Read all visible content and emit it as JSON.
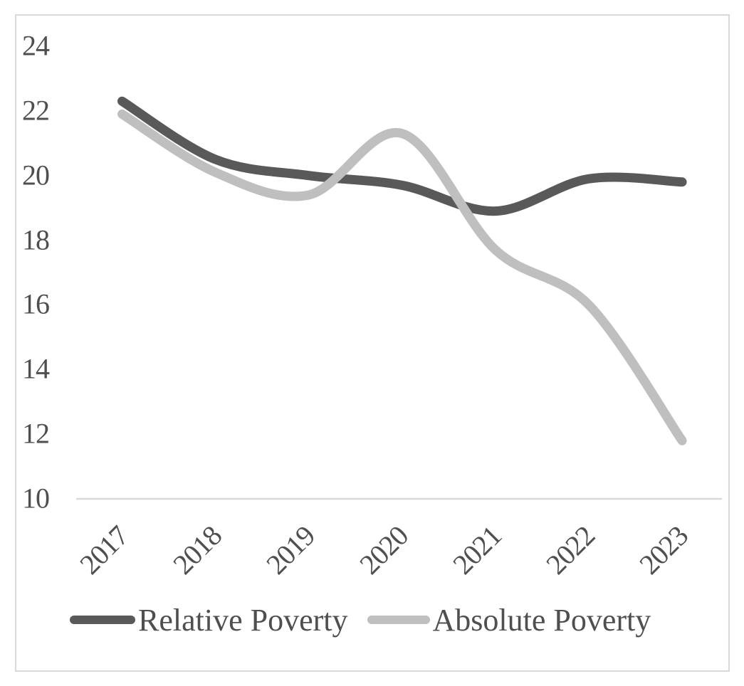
{
  "figure": {
    "background": "#ffffff",
    "border_color": "#d9d9d9"
  },
  "chart_data": {
    "type": "line",
    "title": "",
    "xlabel": "",
    "ylabel": "",
    "categories": [
      "2017",
      "2018",
      "2019",
      "2020",
      "2021",
      "2022",
      "2023"
    ],
    "series": [
      {
        "name": "Relative Poverty",
        "color": "#595959",
        "values": [
          22.3,
          20.5,
          20.0,
          19.7,
          18.9,
          19.9,
          19.8
        ]
      },
      {
        "name": "Absolute Poverty",
        "color": "#bfbfbf",
        "values": [
          21.9,
          20.1,
          19.4,
          21.3,
          17.7,
          16.0,
          11.8
        ]
      }
    ],
    "y_ticks": [
      24,
      22,
      20,
      18,
      16,
      14,
      12,
      10
    ],
    "ylim": [
      10,
      24.5
    ],
    "grid": false,
    "axis_line_color": "#d9d9d9",
    "tick_label_color": "#4f4f4f",
    "legend_position": "bottom",
    "line_style": "smooth"
  }
}
